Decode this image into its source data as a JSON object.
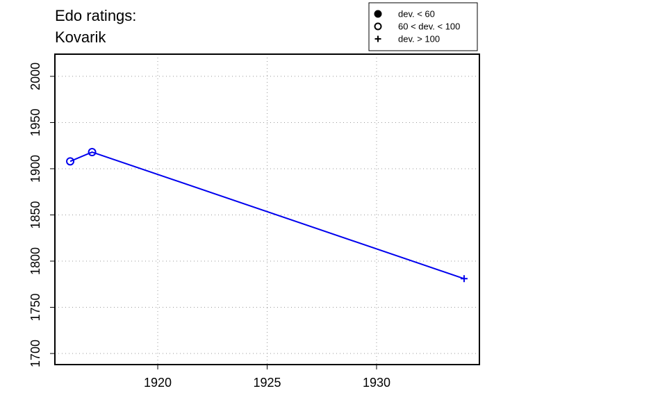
{
  "chart_data": {
    "type": "line",
    "title_lines": [
      "Edo ratings:",
      "Kovarik"
    ],
    "xlabel": "",
    "ylabel": "",
    "x_ticks": [
      1920,
      1925,
      1930
    ],
    "y_ticks": [
      1700,
      1750,
      1800,
      1850,
      1900,
      1950,
      2000
    ],
    "xlim": [
      1915.3,
      1934.7
    ],
    "ylim": [
      1688,
      2024
    ],
    "grid": true,
    "legend_position": "top-right",
    "legend": [
      {
        "label": "dev. < 60",
        "marker": "filled-circle"
      },
      {
        "label": "60 < dev. < 100",
        "marker": "open-circle"
      },
      {
        "label": "dev. > 100",
        "marker": "plus"
      }
    ],
    "series": [
      {
        "color": "#0000ee",
        "points": [
          {
            "x": 1916,
            "y": 1908,
            "marker": "open-circle"
          },
          {
            "x": 1917,
            "y": 1918,
            "marker": "open-circle"
          },
          {
            "x": 1934,
            "y": 1781,
            "marker": "plus"
          }
        ]
      }
    ]
  }
}
